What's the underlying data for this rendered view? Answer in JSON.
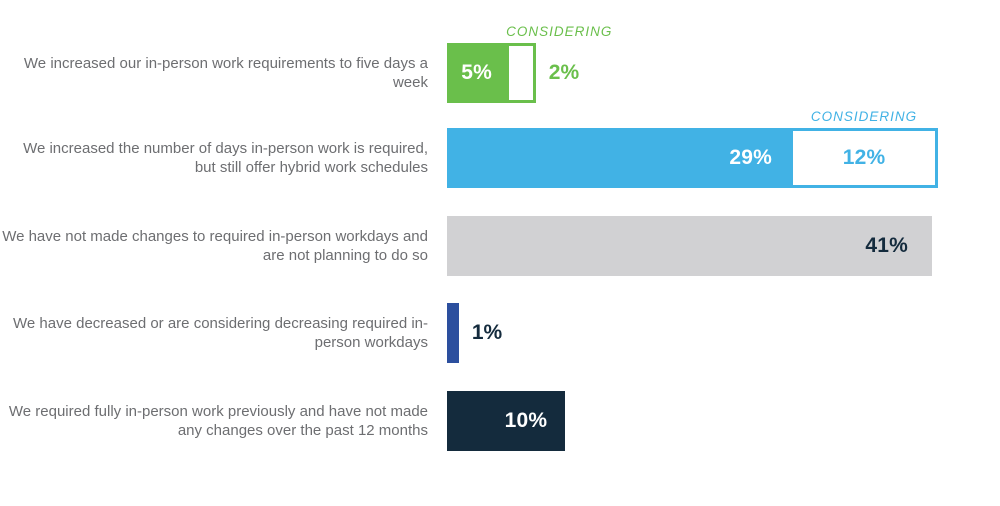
{
  "chart_data": {
    "type": "bar",
    "orientation": "horizontal",
    "value_unit": "%",
    "xlim": [
      0,
      45
    ],
    "grid": false,
    "legend_position": "none",
    "rows": [
      {
        "category": "We increased our in-person work requirements to five days a week",
        "value": 5,
        "value_label": "5%",
        "value_color": "#ffffff",
        "value_position": "inside-center",
        "color": "#6abf4b",
        "considering": {
          "value": 2,
          "label": "2%",
          "tag": "CONSIDERING",
          "label_position": "outside"
        }
      },
      {
        "category": "We increased the number of days in-person work is required, but still offer hybrid work schedules",
        "value": 29,
        "value_label": "29%",
        "value_color": "#ffffff",
        "value_position": "inside-right",
        "color": "#41b2e5",
        "considering": {
          "value": 12,
          "label": "12%",
          "tag": "CONSIDERING",
          "label_position": "inside"
        }
      },
      {
        "category": "We have not made changes to required in-person workdays and are not planning to do so",
        "value": 41,
        "value_label": "41%",
        "value_color": "#142b3d",
        "value_position": "inside-right",
        "color": "#d1d1d3"
      },
      {
        "category": "We have decreased or are considering decreasing required in-person workdays",
        "value": 1,
        "value_label": "1%",
        "value_color": "#142b3d",
        "value_position": "outside",
        "color": "#2c4f9e"
      },
      {
        "category": "We required fully in-person work previously and have not made any changes over the past 12 months",
        "value": 10,
        "value_label": "10%",
        "value_color": "#ffffff",
        "value_position": "inside-right",
        "color": "#142b3d"
      }
    ],
    "text_color": "#6d6e71"
  }
}
